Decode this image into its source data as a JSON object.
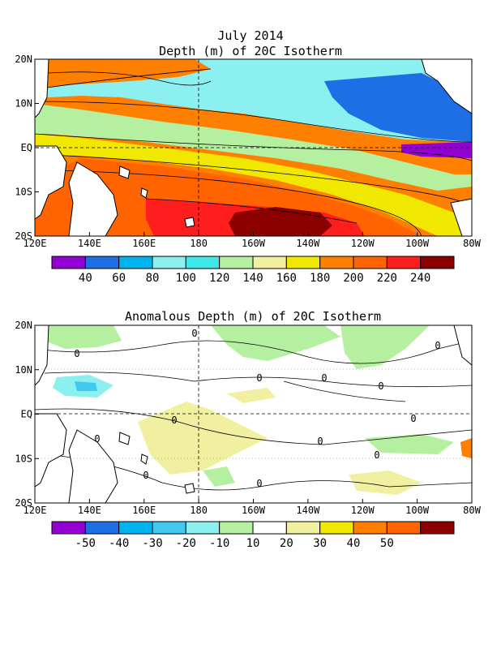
{
  "chart_data": [
    {
      "type": "heatmap",
      "title": "July 2014",
      "subtitle": "Depth (m) of 20C Isotherm",
      "x_ticks": [
        "120E",
        "140E",
        "160E",
        "180",
        "160W",
        "140W",
        "120W",
        "100W",
        "80W"
      ],
      "y_ticks": [
        "20N",
        "10N",
        "EQ",
        "10S",
        "20S"
      ],
      "colorbar": {
        "labels": [
          "40",
          "60",
          "80",
          "100",
          "120",
          "140",
          "160",
          "180",
          "200",
          "220",
          "240"
        ],
        "colors": [
          "#9400d3",
          "#1e6ee6",
          "#00b4f0",
          "#8cf0f0",
          "#40e8e8",
          "#b4f0a0",
          "#f0f0a0",
          "#f0e800",
          "#ff7f00",
          "#ff6400",
          "#ff1e1e",
          "#8c0000"
        ]
      },
      "regions": [
        {
          "name": "upper-band",
          "value": "200",
          "color": "#ff7f00"
        },
        {
          "name": "north-cyan",
          "value": "100",
          "color": "#8cf0f0"
        },
        {
          "name": "east-blue",
          "value": "60",
          "color": "#1e6ee6"
        },
        {
          "name": "east-purple",
          "value": "40",
          "color": "#9400d3"
        },
        {
          "name": "green-band",
          "value": "140",
          "color": "#b4f0a0"
        },
        {
          "name": "yellow-band",
          "value": "170",
          "color": "#f0e800"
        },
        {
          "name": "south-orange",
          "value": "210",
          "color": "#ff6400"
        },
        {
          "name": "south-red",
          "value": "230",
          "color": "#ff1e1e"
        },
        {
          "name": "south-dark",
          "value": "250",
          "color": "#8c0000"
        }
      ]
    },
    {
      "type": "heatmap",
      "title": "Anomalous Depth (m) of 20C Isotherm",
      "x_ticks": [
        "120E",
        "140E",
        "160E",
        "180",
        "160W",
        "140W",
        "120W",
        "100W",
        "80W"
      ],
      "y_ticks": [
        "20N",
        "10N",
        "EQ",
        "10S",
        "20S"
      ],
      "colorbar": {
        "labels": [
          "-50",
          "-40",
          "-30",
          "-20",
          "-10",
          "10",
          "20",
          "30",
          "40",
          "50"
        ],
        "colors": [
          "#9400d3",
          "#1e6ee6",
          "#00b4f0",
          "#40c8f0",
          "#8cf0f0",
          "#b4f0a0",
          "#ffffff",
          "#f0f0a0",
          "#f0e800",
          "#ff7f00",
          "#ff6400",
          "#8c0000"
        ]
      },
      "contour_labels": [
        "0",
        "0",
        "0",
        "0",
        "0",
        "0",
        "0",
        "0",
        "0",
        "0",
        "0",
        "0",
        "0"
      ]
    }
  ]
}
